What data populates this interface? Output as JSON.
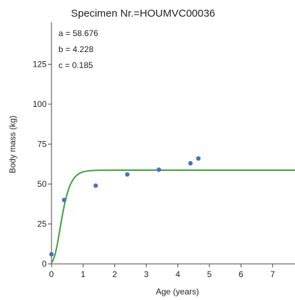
{
  "chart_data": {
    "type": "scatter",
    "title": "Specimen Nr.=HOUMVC00036",
    "xlabel": "Age (years)",
    "ylabel": "Body mass (kg)",
    "xlim": [
      0,
      7.8
    ],
    "ylim": [
      0,
      145
    ],
    "x_ticks": [
      "0",
      "1",
      "2",
      "3",
      "4",
      "5",
      "6",
      "7"
    ],
    "y_ticks": [
      "0",
      "25",
      "50",
      "75",
      "100",
      "125"
    ],
    "grid": false,
    "params": [
      "a = 58.676",
      "b = 4.228",
      "c = 0.185"
    ],
    "series": [
      {
        "kind": "points",
        "color": "#4472c4",
        "x": [
          0.0,
          0.4,
          1.4,
          2.4,
          3.4,
          4.4,
          4.65
        ],
        "y": [
          6,
          40,
          49,
          56,
          59,
          63,
          66
        ]
      },
      {
        "kind": "fitted-curve",
        "color": "#3aa13a",
        "model": "gompertz",
        "a": 58.676,
        "b": 4.228,
        "c": 0.185
      }
    ]
  }
}
